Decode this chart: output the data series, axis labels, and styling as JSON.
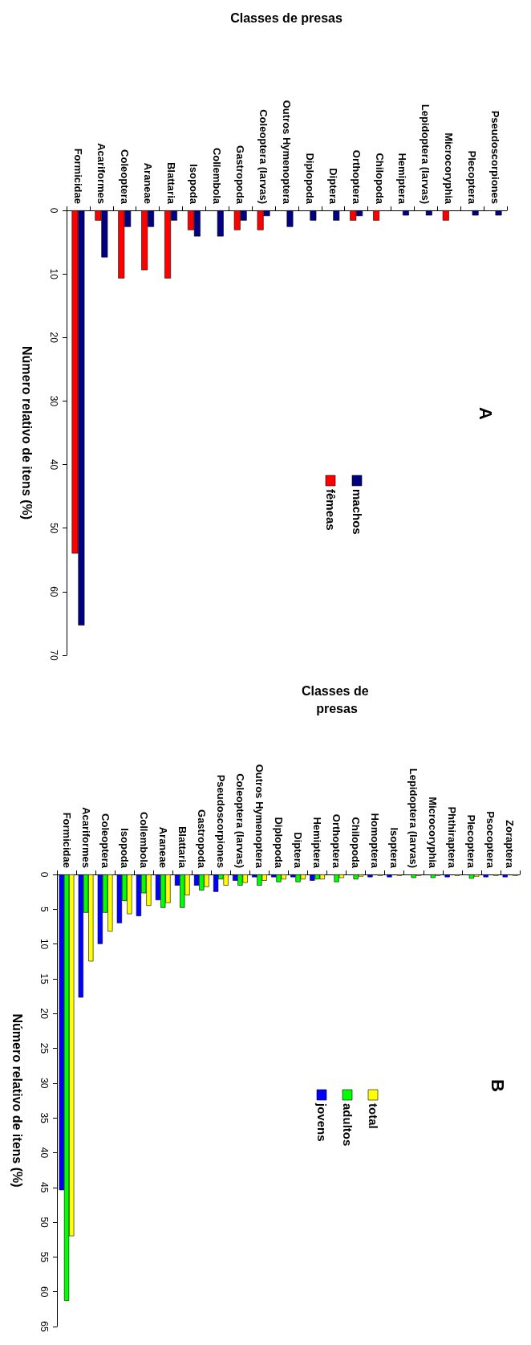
{
  "chart_data": [
    {
      "type": "bar",
      "title": "A",
      "xlabel": "Classes de presas",
      "ylabel": "Número relativo de itens (%)",
      "categories": [
        "Formicidae",
        "Acariformes",
        "Coleoptera",
        "Araneae",
        "Blattaria",
        "Isopoda",
        "Collembola",
        "Gastropoda",
        "Coleoptera (larvas)",
        "Outros Hymenoptera",
        "Diplopoda",
        "Diptera",
        "Orthoptera",
        "Chilopoda",
        "Hemiptera",
        "Lepidoptera (larvas)",
        "Microcoryphia",
        "Plecoptera",
        "Pseudoscorpiones"
      ],
      "series": [
        {
          "name": "fêmeas",
          "color": "#ff0000",
          "values": [
            54,
            1.6,
            10.7,
            9.4,
            10.7,
            3.1,
            null,
            3.1,
            3.1,
            null,
            null,
            null,
            1.6,
            1.6,
            null,
            null,
            1.6,
            null,
            null
          ]
        },
        {
          "name": "machos",
          "color": "#000080",
          "values": [
            65.3,
            7.4,
            2.6,
            2.6,
            1.6,
            4.1,
            4.1,
            1.6,
            0.9,
            2.6,
            1.6,
            1.6,
            0.9,
            null,
            0.8,
            0.8,
            null,
            0.8,
            0.8
          ]
        }
      ],
      "ylim": [
        70,
        0
      ],
      "yticks": [
        0,
        10,
        20,
        30,
        40,
        50,
        60,
        70
      ],
      "legend": "center"
    },
    {
      "type": "bar",
      "title": "B",
      "xlabel": "Classes de presas",
      "ylabel": "Número relativo de itens (%)",
      "categories": [
        "Formicidae",
        "Acariformes",
        "Coleoptera",
        "Isopoda",
        "Collembola",
        "Araneae",
        "Blattaria",
        "Gastropoda",
        "Pseudoscorpiones",
        "Coleoptera (larvas)",
        "Outros Hymenoptera",
        "Diplopoda",
        "Diptera",
        "Hemiptera",
        "Orthoptera",
        "Chilopoda",
        "Homoptera",
        "Isoptera",
        "Lepidoptera (larvas)",
        "Microcoryphia",
        "Phthiraptera",
        "Plecoptera",
        "Psocoptera",
        "Zoraptera"
      ],
      "series": [
        {
          "name": "jovens",
          "color": "#0000ff",
          "values": [
            45.4,
            17.7,
            10,
            7,
            6,
            3.7,
            1.6,
            1.6,
            2.5,
            0.9,
            0.4,
            0.4,
            0.4,
            0.9,
            null,
            null,
            0.4,
            0.4,
            null,
            null,
            0.4,
            null,
            0.4,
            0.4
          ]
        },
        {
          "name": "adultos",
          "color": "#00ff00",
          "values": [
            61.3,
            5.5,
            5.5,
            3.8,
            2.7,
            4.8,
            4.8,
            2.3,
            0.7,
            1.6,
            1.6,
            1.1,
            1.1,
            0.7,
            1.1,
            0.7,
            null,
            null,
            0.5,
            0.5,
            null,
            0.6,
            null,
            null
          ]
        },
        {
          "name": "total",
          "color": "#ffff00",
          "values": [
            52,
            12.5,
            8.2,
            5.7,
            4.5,
            4.1,
            3,
            1.8,
            1.6,
            1.2,
            0.9,
            0.7,
            0.7,
            0.7,
            0.5,
            0.3,
            0.2,
            0.2,
            0.2,
            0.2,
            0.2,
            0.3,
            0.2,
            0.2
          ]
        }
      ],
      "ylim": [
        65,
        0
      ],
      "yticks": [
        0,
        5,
        10,
        15,
        20,
        25,
        30,
        35,
        40,
        45,
        50,
        55,
        60,
        65
      ],
      "legend": "center"
    }
  ]
}
